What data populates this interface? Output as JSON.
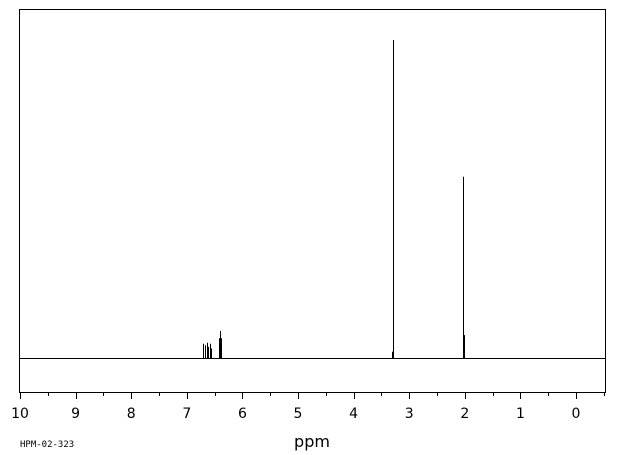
{
  "chart_data": {
    "type": "line",
    "spectrum_kind": "1H NMR",
    "xlabel": "ppm",
    "ylabel": "",
    "xlim": [
      10,
      -0.5
    ],
    "x_reversed": true,
    "ylim": [
      0,
      1
    ],
    "grid": false,
    "x_ticks": [
      10,
      9,
      8,
      7,
      6,
      5,
      4,
      3,
      2,
      1,
      0
    ],
    "x_tick_labels": [
      "10",
      "9",
      "8",
      "7",
      "6",
      "5",
      "4",
      "3",
      "2",
      "1",
      "0"
    ],
    "peaks": [
      {
        "ppm": 6.7,
        "intensity": 0.045
      },
      {
        "ppm": 6.67,
        "intensity": 0.04
      },
      {
        "ppm": 6.64,
        "intensity": 0.048
      },
      {
        "ppm": 6.61,
        "intensity": 0.035
      },
      {
        "ppm": 6.59,
        "intensity": 0.045
      },
      {
        "ppm": 6.56,
        "intensity": 0.03
      },
      {
        "ppm": 6.42,
        "intensity": 0.062
      },
      {
        "ppm": 6.4,
        "intensity": 0.085
      },
      {
        "ppm": 6.38,
        "intensity": 0.062
      },
      {
        "ppm": 3.31,
        "intensity": 0.02
      },
      {
        "ppm": 3.29,
        "intensity": 1.0
      },
      {
        "ppm": 2.04,
        "intensity": 0.57
      },
      {
        "ppm": 2.02,
        "intensity": 0.072
      }
    ],
    "spectrum_code": "HPM-02-323"
  }
}
